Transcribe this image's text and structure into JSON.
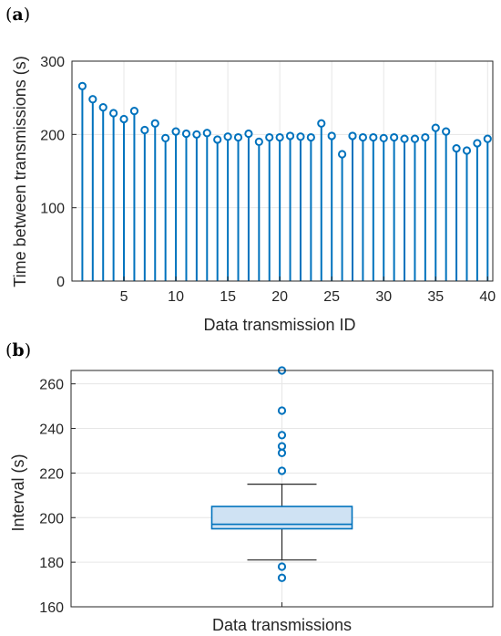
{
  "colors": {
    "series": "#0072BD",
    "box_fill": "#cfe2f3",
    "whisker": "#262626",
    "grid": "#e6e6e6"
  },
  "chart_data": [
    {
      "panel": "(a)",
      "type": "stem",
      "xlabel": "Data transmission ID",
      "ylabel": "Time between transmissions (s)",
      "xlim": [
        0,
        40.5
      ],
      "ylim": [
        0,
        300
      ],
      "xticks": [
        5,
        10,
        15,
        20,
        25,
        30,
        35,
        40
      ],
      "yticks": [
        0,
        100,
        200,
        300
      ],
      "grid": true,
      "x": [
        1,
        2,
        3,
        4,
        5,
        6,
        7,
        8,
        9,
        10,
        11,
        12,
        13,
        14,
        15,
        16,
        17,
        18,
        19,
        20,
        21,
        22,
        23,
        24,
        25,
        26,
        27,
        28,
        29,
        30,
        31,
        32,
        33,
        34,
        35,
        36,
        37,
        38,
        39,
        40
      ],
      "values": [
        266,
        248,
        237,
        229,
        221,
        232,
        206,
        215,
        195,
        204,
        201,
        200,
        202,
        193,
        197,
        196,
        201,
        190,
        196,
        196,
        198,
        197,
        196,
        215,
        198,
        173,
        198,
        196,
        196,
        195,
        196,
        194,
        194,
        196,
        209,
        204,
        181,
        178,
        188,
        194
      ]
    },
    {
      "panel": "(b)",
      "type": "box",
      "categories": [
        "Data transmissions"
      ],
      "ylabel": "Interval (s)",
      "ylim": [
        160,
        266
      ],
      "yticks": [
        160,
        180,
        200,
        220,
        240,
        260
      ],
      "grid": true,
      "stats": {
        "q1": 195,
        "median": 197,
        "q3": 205,
        "whisker_low": 181,
        "whisker_high": 215
      },
      "outliers": [
        266,
        248,
        237,
        232,
        229,
        221,
        178,
        173
      ]
    }
  ]
}
